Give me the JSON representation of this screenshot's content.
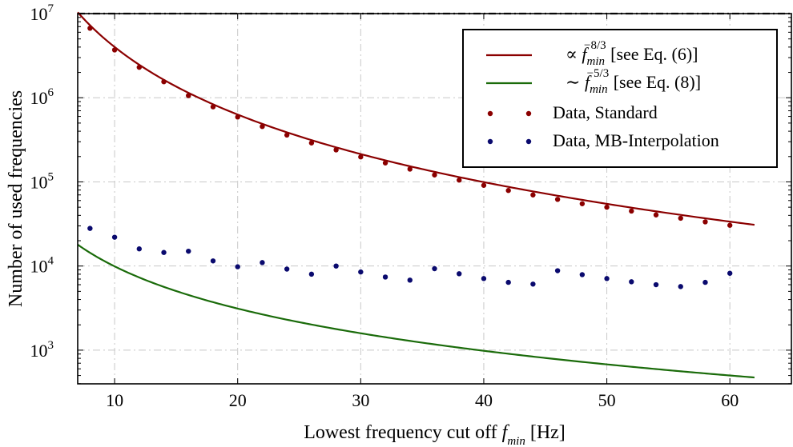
{
  "chart_data": {
    "type": "scatter",
    "xlabel_prefix": "Lowest frequency cut off ",
    "xlabel_var": "f",
    "xlabel_sub": "min",
    "xlabel_suffix": " [Hz]",
    "ylabel": "Number of used frequencies",
    "xlim": [
      7,
      65
    ],
    "ylim_log10": [
      2.6,
      7
    ],
    "yscale": "log",
    "grid": true,
    "legend_position": "top-right",
    "x_ticks": [
      10,
      20,
      30,
      40,
      50,
      60
    ],
    "y_ticks": [
      {
        "exp": 3,
        "base": "10",
        "power": "3"
      },
      {
        "exp": 4,
        "base": "10",
        "power": "4"
      },
      {
        "exp": 5,
        "base": "10",
        "power": "5"
      },
      {
        "exp": 6,
        "base": "10",
        "power": "6"
      },
      {
        "exp": 7,
        "base": "10",
        "power": "7"
      }
    ],
    "series": [
      {
        "name": "∝ f_min^{-8/3} [see Eq. (6)]",
        "legend_symbol": "∝",
        "legend_var": "f",
        "legend_sub": "min",
        "legend_sup": "−8/3",
        "legend_suffix": " [see Eq. (6)]",
        "kind": "line",
        "color": "#8b0000",
        "formula": "A * x^(-8/3)",
        "A": 1860000000.0,
        "x_range": [
          7,
          62
        ]
      },
      {
        "name": "~ f_min^{-5/3} [see Eq. (8)]",
        "legend_symbol": "∼",
        "legend_var": "f",
        "legend_sub": "min",
        "legend_sup": "−5/3",
        "legend_suffix": " [see Eq. (8)]",
        "kind": "line",
        "color": "#1a6b0a",
        "formula": "A * x^(-5/3)",
        "A": 460000.0,
        "x_range": [
          7,
          62
        ]
      },
      {
        "name": "Data, Standard",
        "kind": "points",
        "color": "#8b0000",
        "x": [
          8,
          10,
          12,
          14,
          16,
          18,
          20,
          22,
          24,
          26,
          28,
          30,
          32,
          34,
          36,
          38,
          40,
          42,
          44,
          46,
          48,
          50,
          52,
          54,
          56,
          58,
          60
        ],
        "y": [
          6700000,
          3700000,
          2300000,
          1550000,
          1060000,
          780000,
          590000,
          455000,
          360000,
          290000,
          240000,
          198000,
          168000,
          142000,
          121000,
          105000,
          91000,
          79000,
          70000,
          62000,
          55000,
          50000,
          45000,
          40500,
          37000,
          33500,
          30500
        ]
      },
      {
        "name": "Data, MB-Interpolation",
        "kind": "points",
        "color": "#0a0a6e",
        "x": [
          8,
          10,
          12,
          14,
          16,
          18,
          20,
          22,
          24,
          26,
          28,
          30,
          32,
          34,
          36,
          38,
          40,
          42,
          44,
          46,
          48,
          50,
          52,
          54,
          56,
          58,
          60
        ],
        "y": [
          28000,
          22000,
          16000,
          14500,
          15000,
          11500,
          9800,
          11000,
          9200,
          8000,
          10000,
          8500,
          7400,
          6800,
          9300,
          8100,
          7100,
          6400,
          6100,
          8800,
          7900,
          7100,
          6500,
          6000,
          5700,
          6400,
          8200
        ]
      }
    ]
  }
}
